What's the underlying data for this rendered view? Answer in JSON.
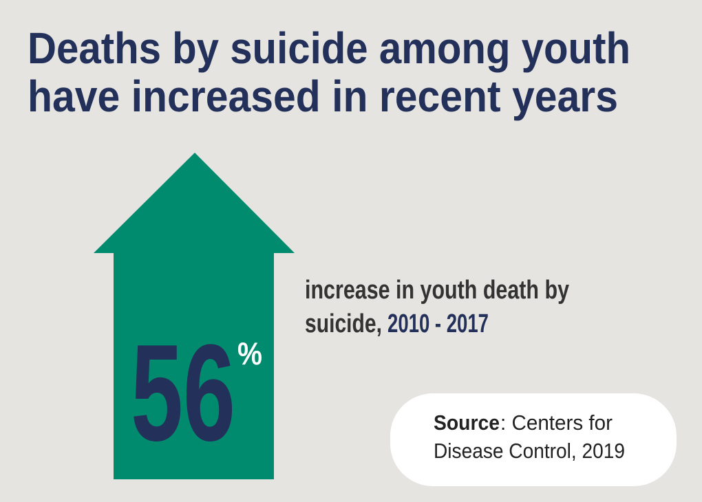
{
  "title": [
    "Deaths by suicide among youth",
    "have increased in recent years"
  ],
  "stat": {
    "value": "56",
    "unit": "%"
  },
  "description": {
    "lines": [
      "increase in youth death by",
      "suicide,"
    ],
    "highlight": "2010 - 2017"
  },
  "source": {
    "label": "Source",
    "lines": [
      ": Centers for",
      "Disease Control, 2019"
    ]
  }
}
